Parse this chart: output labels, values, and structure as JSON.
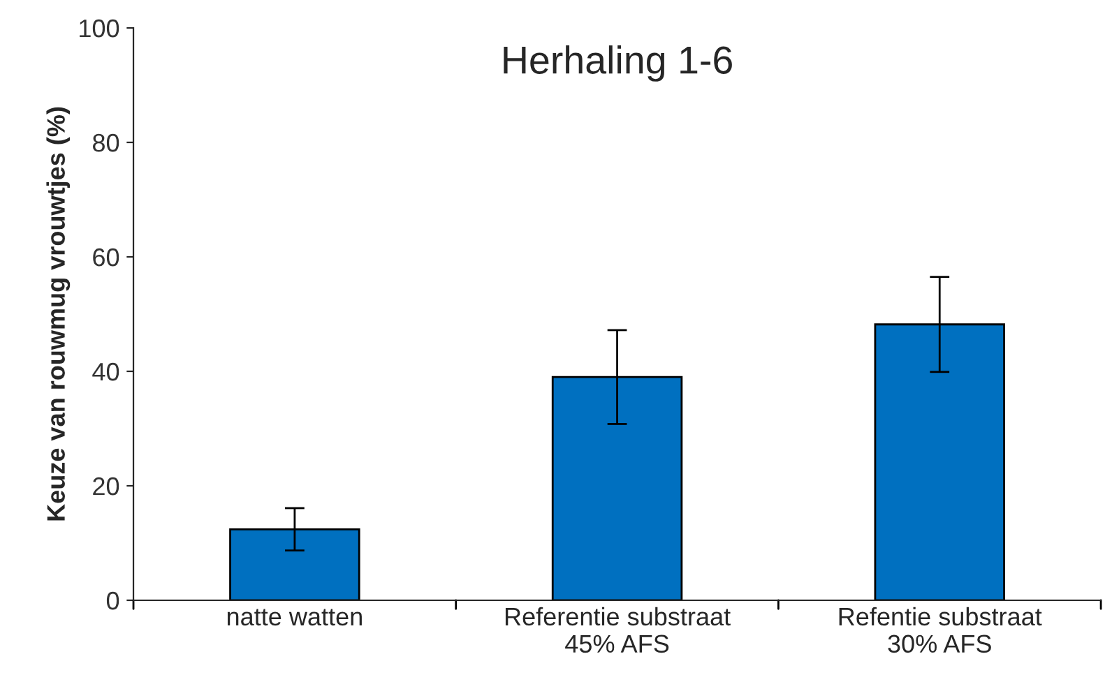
{
  "chart_data": {
    "type": "bar",
    "title": "Herhaling 1-6",
    "ylabel": "Keuze van rouwmug vrouwtjes (%)",
    "categories": [
      "natte watten",
      "Referentie substraat\n45% AFS",
      "Refentie substraat\n30% AFS"
    ],
    "values": [
      12.4,
      39.0,
      48.2
    ],
    "errors": [
      3.7,
      8.2,
      8.3
    ],
    "color": "#0070c0",
    "ylim": [
      0,
      100
    ],
    "yticks": [
      0,
      20,
      40,
      60,
      80,
      100
    ],
    "grid": false
  }
}
